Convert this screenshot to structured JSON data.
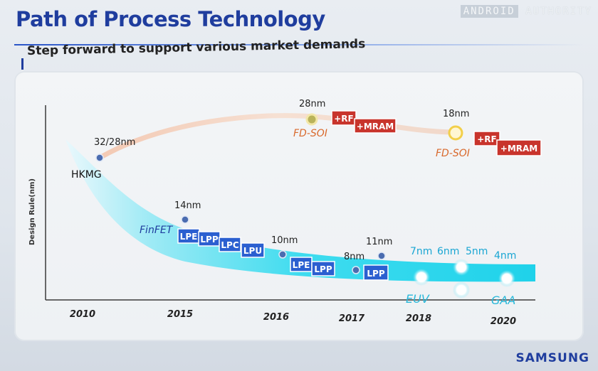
{
  "title": "Path of Process Technology",
  "subtitle": "Step forward to support various market demands",
  "watermark": {
    "part1": "ANDROID",
    "part2": "AUTHORITY"
  },
  "brand": "SAMSUNG",
  "axis": {
    "y_label": "Design Rule(nm)",
    "x_ticks": [
      "2010",
      "2015",
      "2016",
      "2017",
      "2018",
      "2020"
    ]
  },
  "nodes": {
    "hkmg_size": "32/28nm",
    "hkmg_label": "HKMG",
    "finfet_size": "14nm",
    "finfet_label": "FinFET",
    "n10_size": "10nm",
    "n8_size": "8nm",
    "n11_size": "11nm",
    "n7_size": "7nm",
    "n6_size": "6nm",
    "n5_size": "5nm",
    "n4_size": "4nm",
    "euv_label": "EUV",
    "gaa_label": "GAA",
    "fdsoi1_size": "28nm",
    "fdsoi1_label": "FD-SOI",
    "fdsoi2_size": "18nm",
    "fdsoi2_label": "FD-SOI"
  },
  "badges": {
    "lpe14": "LPE",
    "lpp14": "LPP",
    "lpc14": "LPC",
    "lpu14": "LPU",
    "lpe10": "LPE",
    "lpp10": "LPP",
    "lpp8": "LPP",
    "rf1": "+RF",
    "mram1": "+MRAM",
    "rf2": "+RF",
    "mram2": "+MRAM"
  },
  "colors": {
    "title_blue": "#1f3d9e",
    "band_cyan": "#24d6ec",
    "badge_blue": "#2b5fd0",
    "badge_red": "#c8342c",
    "fdsoi_orange": "#d9692c",
    "euv_cyan": "#28b8d9"
  }
}
